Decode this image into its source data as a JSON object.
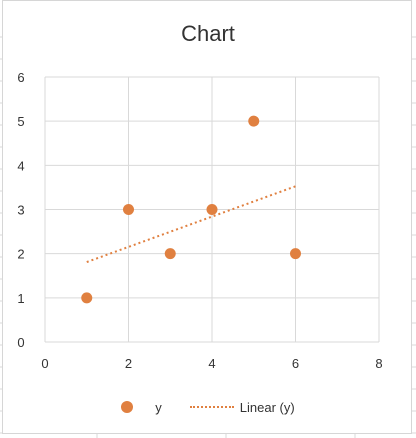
{
  "chart_data": {
    "type": "scatter",
    "title": "Chart",
    "xlim": [
      0,
      8
    ],
    "ylim": [
      0,
      6
    ],
    "x_ticks": [
      0,
      2,
      4,
      6,
      8
    ],
    "y_ticks": [
      0,
      1,
      2,
      3,
      4,
      5,
      6
    ],
    "grid": true,
    "legend_position": "bottom",
    "series": [
      {
        "name": "y",
        "color": "#E08040",
        "points": [
          {
            "x": 1,
            "y": 1
          },
          {
            "x": 2,
            "y": 3
          },
          {
            "x": 3,
            "y": 2
          },
          {
            "x": 4,
            "y": 3
          },
          {
            "x": 5,
            "y": 5
          },
          {
            "x": 6,
            "y": 2
          }
        ]
      }
    ],
    "trendline": {
      "name": "Linear (y)",
      "type": "linear",
      "style": "dotted",
      "color": "#E08040",
      "x_range": [
        1,
        6
      ],
      "slope": 0.343,
      "intercept": 1.467
    }
  }
}
